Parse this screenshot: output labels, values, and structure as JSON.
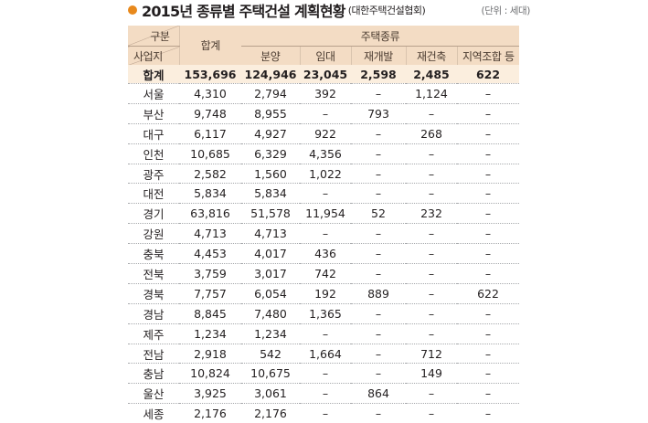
{
  "header": {
    "title": "2015년 종류별 주택건설 계획현황",
    "source": "(대한주택건설협회)",
    "unit": "(단위 : 세대)"
  },
  "table": {
    "col_headers": {
      "gubun": "구분",
      "region": "사업지",
      "total": "합계",
      "housing_types": "주택종류",
      "types": [
        "분양",
        "임대",
        "재개발",
        "재건축",
        "지역조합 등"
      ]
    },
    "total_row": {
      "label": "합계",
      "values": [
        "153,696",
        "124,946",
        "23,045",
        "2,598",
        "2,485",
        "622"
      ]
    },
    "rows": [
      {
        "region": "서울",
        "values": [
          "4,310",
          "2,794",
          "392",
          "–",
          "1,124",
          "–"
        ]
      },
      {
        "region": "부산",
        "values": [
          "9,748",
          "8,955",
          "–",
          "793",
          "–",
          "–"
        ]
      },
      {
        "region": "대구",
        "values": [
          "6,117",
          "4,927",
          "922",
          "–",
          "268",
          "–"
        ]
      },
      {
        "region": "인천",
        "values": [
          "10,685",
          "6,329",
          "4,356",
          "–",
          "–",
          "–"
        ]
      },
      {
        "region": "광주",
        "values": [
          "2,582",
          "1,560",
          "1,022",
          "–",
          "–",
          "–"
        ]
      },
      {
        "region": "대전",
        "values": [
          "5,834",
          "5,834",
          "–",
          "–",
          "–",
          "–"
        ]
      },
      {
        "region": "경기",
        "values": [
          "63,816",
          "51,578",
          "11,954",
          "52",
          "232",
          "–"
        ]
      },
      {
        "region": "강원",
        "values": [
          "4,713",
          "4,713",
          "–",
          "–",
          "–",
          "–"
        ]
      },
      {
        "region": "충북",
        "values": [
          "4,453",
          "4,017",
          "436",
          "–",
          "–",
          "–"
        ]
      },
      {
        "region": "전북",
        "values": [
          "3,759",
          "3,017",
          "742",
          "–",
          "–",
          "–"
        ]
      },
      {
        "region": "경북",
        "values": [
          "7,757",
          "6,054",
          "192",
          "889",
          "–",
          "622"
        ]
      },
      {
        "region": "경남",
        "values": [
          "8,845",
          "7,480",
          "1,365",
          "–",
          "–",
          "–"
        ]
      },
      {
        "region": "제주",
        "values": [
          "1,234",
          "1,234",
          "–",
          "–",
          "–",
          "–"
        ]
      },
      {
        "region": "전남",
        "values": [
          "2,918",
          "542",
          "1,664",
          "–",
          "712",
          "–"
        ]
      },
      {
        "region": "충남",
        "values": [
          "10,824",
          "10,675",
          "–",
          "–",
          "149",
          "–"
        ]
      },
      {
        "region": "울산",
        "values": [
          "3,925",
          "3,061",
          "–",
          "864",
          "–",
          "–"
        ]
      },
      {
        "region": "세종",
        "values": [
          "2,176",
          "2,176",
          "–",
          "–",
          "–",
          "–"
        ]
      }
    ]
  }
}
